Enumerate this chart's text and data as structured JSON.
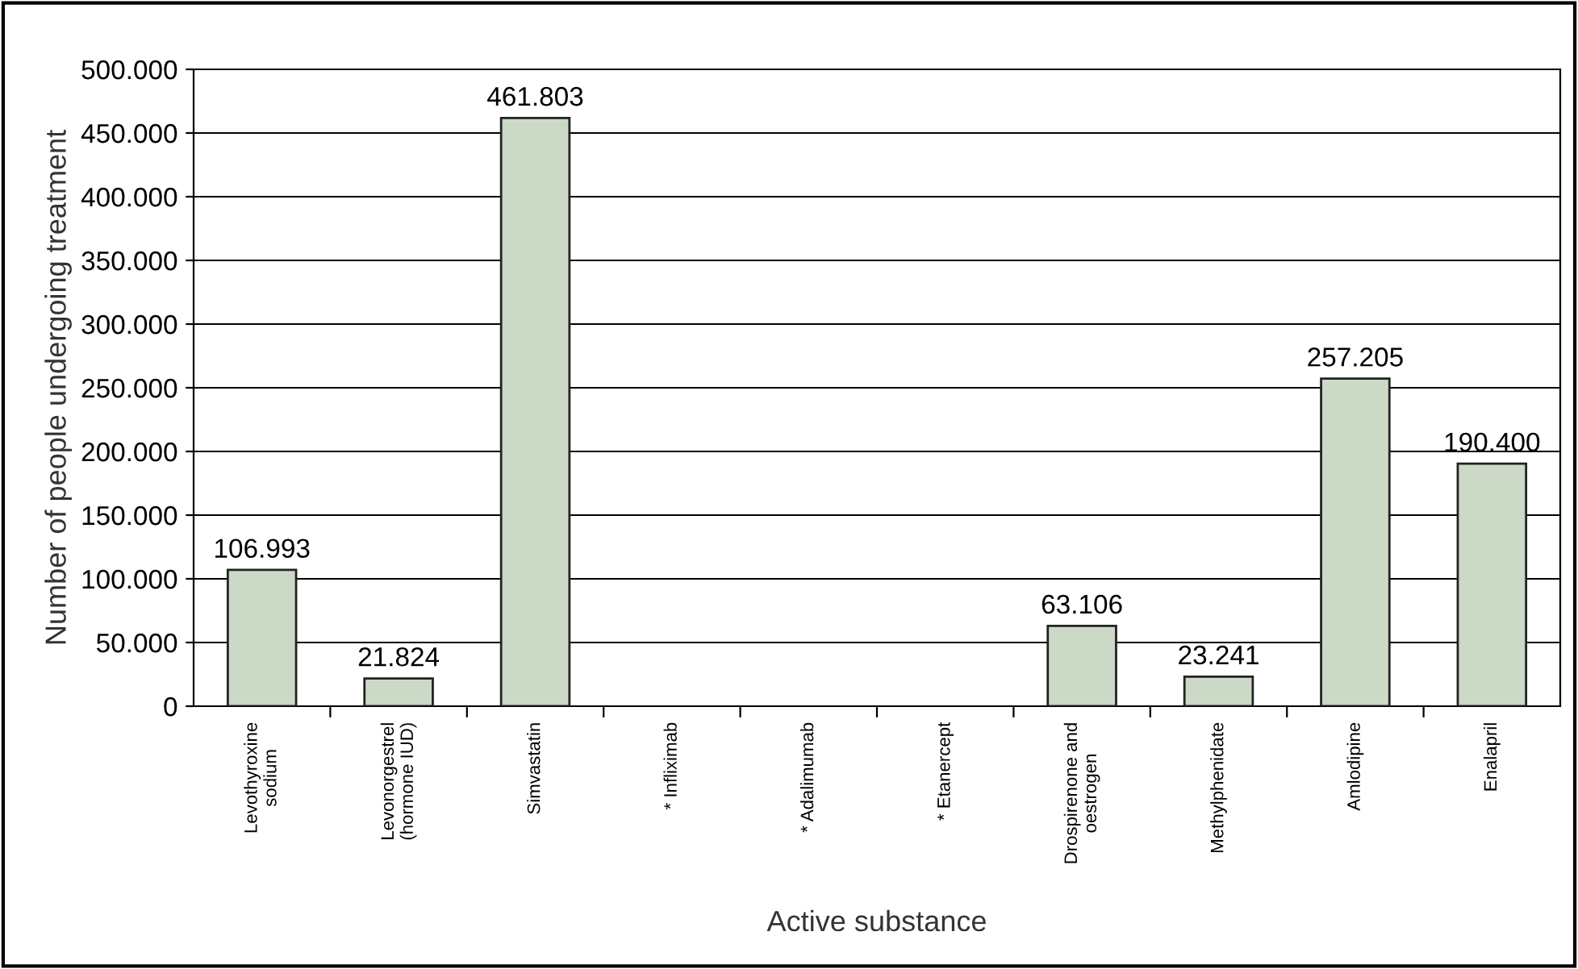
{
  "chart_data": {
    "type": "bar",
    "xlabel": "Active substance",
    "ylabel": "Number of people undergoing treatment",
    "categories": [
      "Levothyroxine\nsodium",
      "Levonorgestrel\n(hormone IUD)",
      "Simvastatin",
      "* Infliximab",
      "* Adalimumab",
      "* Etanercept",
      "Drospirenone and\noestrogen",
      "Methylphenidate",
      "Amlodipine",
      "Enalapril"
    ],
    "values": [
      106993,
      21824,
      461803,
      null,
      null,
      null,
      63106,
      23241,
      257205,
      190400
    ],
    "value_labels": [
      "106.993",
      "21.824",
      "461.803",
      null,
      null,
      null,
      "63.106",
      "23.241",
      "257.205",
      "190.400"
    ],
    "color": "#cbd9c6",
    "ylim": [
      0,
      500000
    ],
    "yticks": [
      {
        "value": 0,
        "label": "0"
      },
      {
        "value": 50000,
        "label": "50.000"
      },
      {
        "value": 100000,
        "label": "100.000"
      },
      {
        "value": 150000,
        "label": "150.000"
      },
      {
        "value": 200000,
        "label": "200.000"
      },
      {
        "value": 250000,
        "label": "250.000"
      },
      {
        "value": 300000,
        "label": "300.000"
      },
      {
        "value": 350000,
        "label": "350.000"
      },
      {
        "value": 400000,
        "label": "400.000"
      },
      {
        "value": 450000,
        "label": "450.000"
      },
      {
        "value": 500000,
        "label": "500.000"
      }
    ],
    "grid": "y",
    "legend": false
  }
}
